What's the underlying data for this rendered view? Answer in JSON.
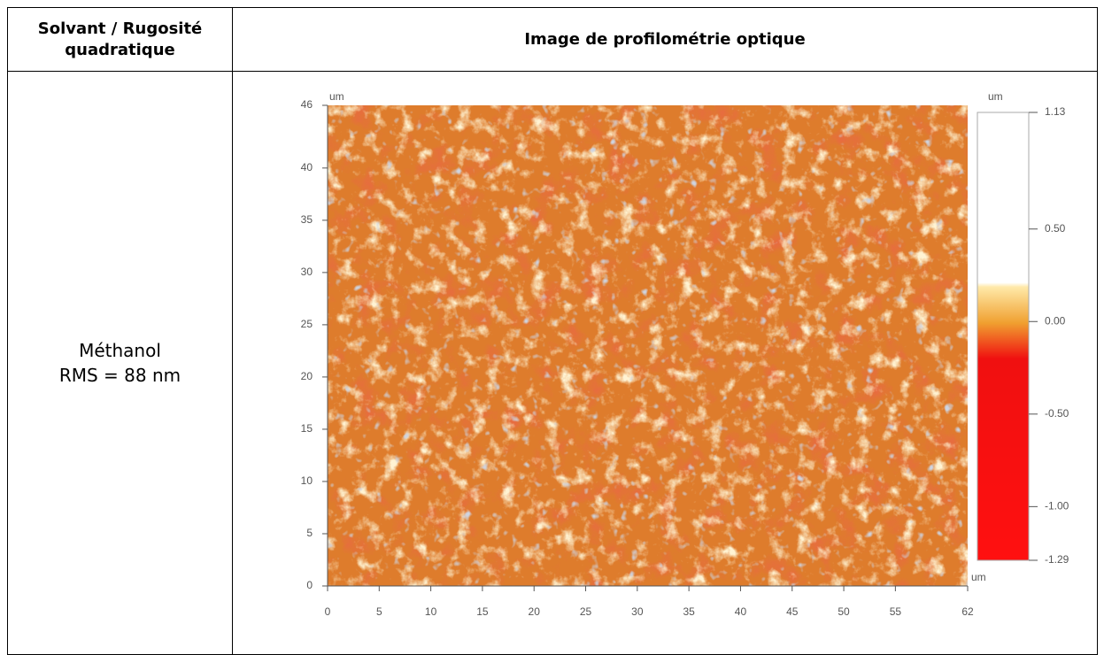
{
  "table": {
    "headers": [
      "Solvant / Rugosité quadratique",
      "Image de profilométrie optique"
    ],
    "rows": [
      {
        "label": [
          "Méthanol",
          "RMS = 88 nm"
        ],
        "image": {
          "x_unit": "um",
          "y_unit": "um",
          "z_unit": "um",
          "xlim": [
            0,
            62
          ],
          "xticks": [
            0,
            5,
            10,
            15,
            20,
            25,
            30,
            35,
            40,
            45,
            50,
            55,
            62
          ],
          "ylim": [
            0,
            46
          ],
          "yticks": [
            0,
            5,
            10,
            15,
            20,
            25,
            30,
            35,
            40,
            46
          ],
          "zlim": [
            -1.29,
            1.13
          ],
          "zticks": [
            1.13,
            {
              "value": 0.5,
              "label": "0.50"
            },
            {
              "value": 0,
              "label": "0.00"
            },
            {
              "value": -0.5,
              "label": "-0.50"
            },
            {
              "value": -1,
              "label": "-1.00"
            },
            -1.29
          ]
        }
      }
    ]
  }
}
